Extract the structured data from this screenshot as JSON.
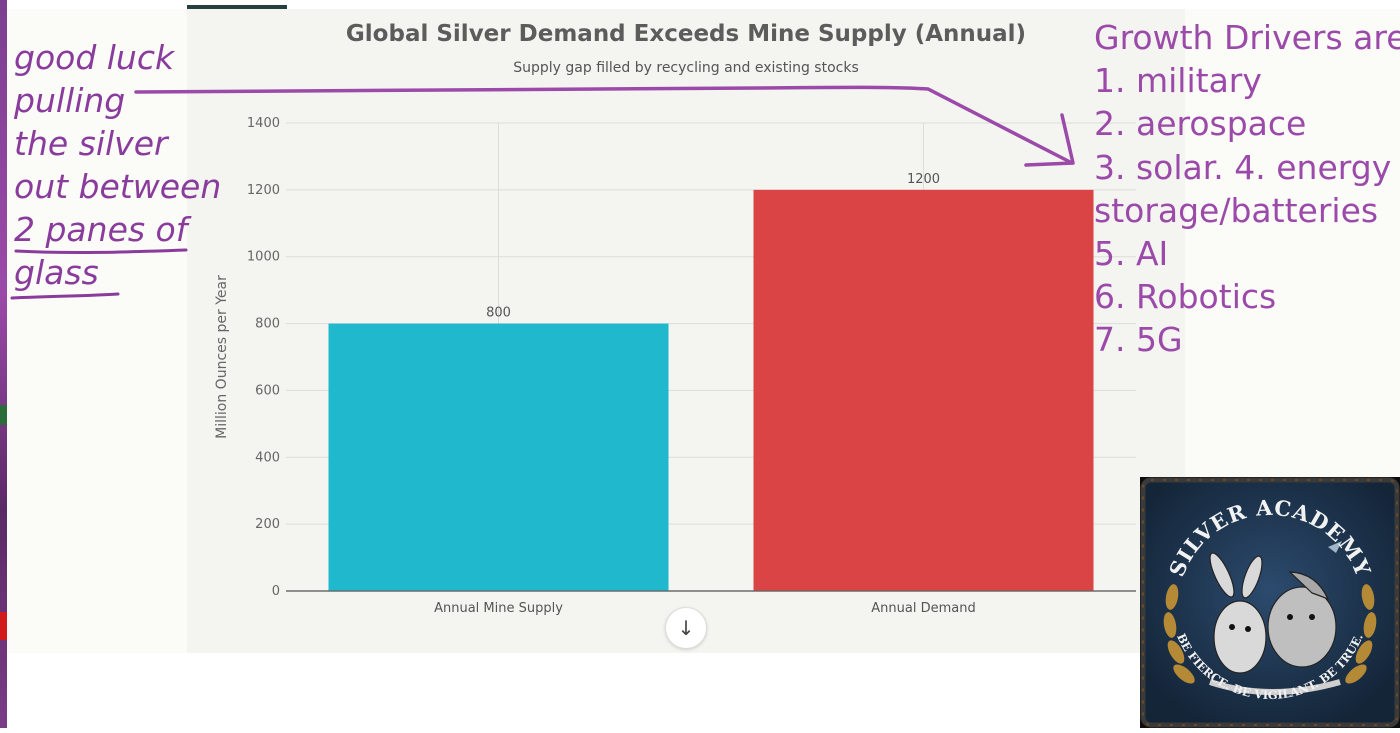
{
  "chart_data": {
    "type": "bar",
    "title": "Global Silver Demand Exceeds Mine Supply (Annual)",
    "subtitle": "Supply gap filled by recycling and existing stocks",
    "categories": [
      "Annual Mine Supply",
      "Annual Demand"
    ],
    "values": [
      800,
      1200
    ],
    "data_labels": [
      "800",
      "1200"
    ],
    "bar_colors": [
      "#20b8cc",
      "#db4444"
    ],
    "ylabel": "Million Ounces per Year",
    "xlabel": "",
    "ylim": [
      0,
      1400
    ],
    "yticks": [
      0,
      200,
      400,
      600,
      800,
      1000,
      1200,
      1400
    ],
    "grid": true,
    "legend": "none"
  },
  "ui": {
    "scroll_icon": "arrow-down-icon",
    "scroll_glyph": "↓"
  },
  "annotations": {
    "left_note_lines": [
      "good luck",
      "pulling",
      "the silver",
      "out between",
      "2 panes of",
      "glass"
    ],
    "right_note_lines": [
      "Growth Drivers are",
      "1. military",
      "2. aerospace",
      "3. solar. 4. energy",
      "storage/batteries",
      "5. AI",
      "6. Robotics",
      "7. 5G"
    ],
    "ink_color": "#9b4aa9",
    "arrow_icon": "hand-drawn-arrow-icon"
  },
  "logo": {
    "name": "silver-academy-badge-icon",
    "top_text": "SILVER ACADEMY",
    "bottom_text": "BE FIERCE. BE VIGILANT. BE TRUE.",
    "colors": {
      "badge": "#1d3550",
      "laurel": "#b48a36",
      "rim": "#2a2a2a"
    }
  }
}
